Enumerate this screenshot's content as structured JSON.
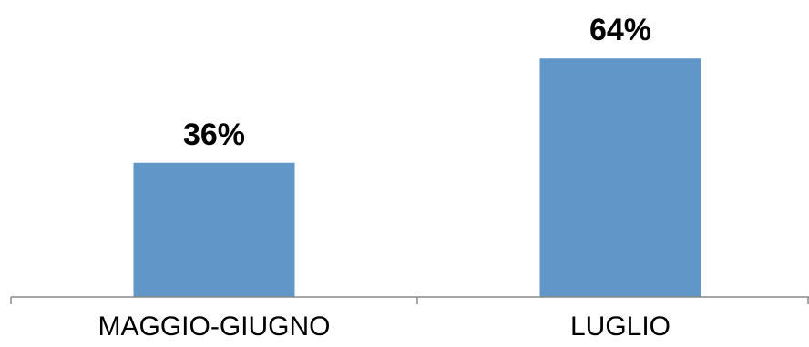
{
  "chart_data": {
    "type": "bar",
    "title": "",
    "xlabel": "",
    "ylabel": "",
    "categories": [
      "MAGGIO-GIUGNO",
      "LUGLIO"
    ],
    "values": [
      36,
      64
    ],
    "data_labels": [
      "36%",
      "64%"
    ],
    "ylim": [
      0,
      75
    ],
    "grid": false,
    "legend": "none",
    "bar_color": "#6096C8",
    "axis_color": "#888888"
  }
}
